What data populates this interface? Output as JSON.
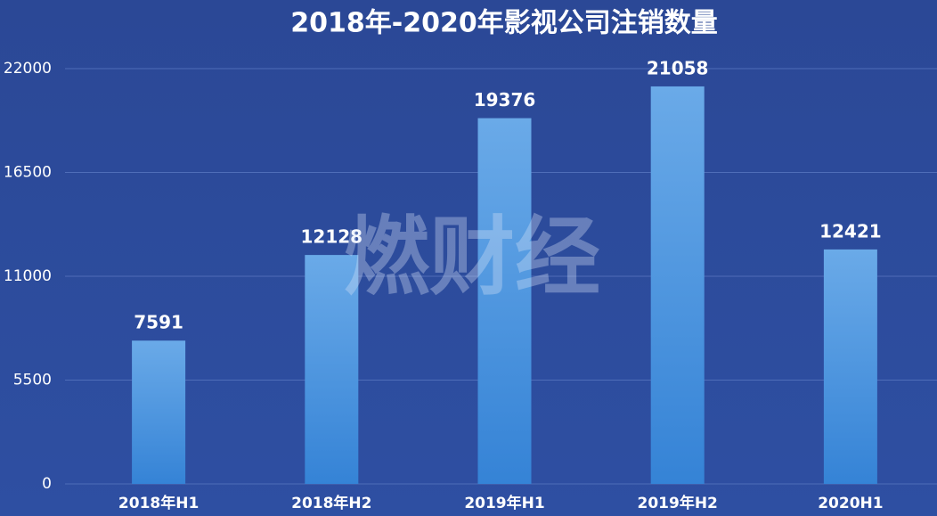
{
  "chart_data": {
    "type": "bar",
    "title": "2018年-2020年影视公司注销数量",
    "categories": [
      "2018年H1",
      "2018年H2",
      "2019年H1",
      "2019年H2",
      "2020H1"
    ],
    "values": [
      7591,
      12128,
      19376,
      21058,
      12421
    ],
    "color": "#4a93e0",
    "ylim": [
      0,
      22000
    ],
    "yticks": [
      0,
      5500,
      11000,
      16500,
      22000
    ],
    "grid": true,
    "watermark": "燃财经"
  }
}
